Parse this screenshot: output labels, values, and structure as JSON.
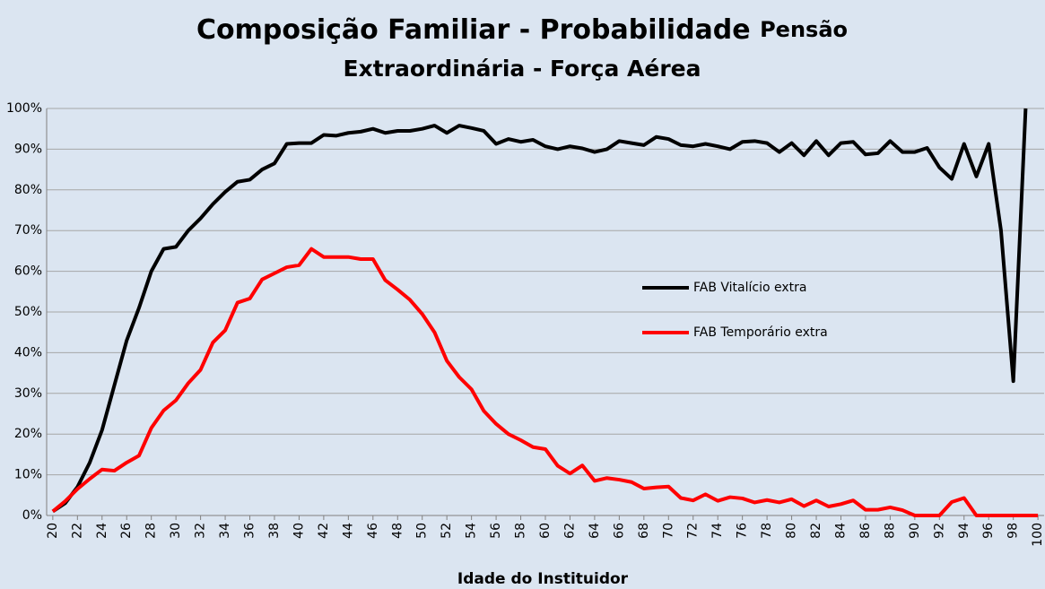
{
  "chart_data": {
    "type": "line",
    "title": [
      "Composição Familiar - Probabilidade",
      "Pensão",
      "Extraordinária - Força Aérea"
    ],
    "x_label": "Idade do Instituidor",
    "x": [
      20,
      21,
      22,
      23,
      24,
      25,
      26,
      27,
      28,
      29,
      30,
      31,
      32,
      33,
      34,
      35,
      36,
      37,
      38,
      39,
      40,
      41,
      42,
      43,
      44,
      45,
      46,
      47,
      48,
      49,
      50,
      51,
      52,
      53,
      54,
      55,
      56,
      57,
      58,
      59,
      60,
      61,
      62,
      63,
      64,
      65,
      66,
      67,
      68,
      69,
      70,
      71,
      72,
      73,
      74,
      75,
      76,
      77,
      78,
      79,
      80,
      81,
      82,
      83,
      84,
      85,
      86,
      87,
      88,
      89,
      90,
      91,
      92,
      93,
      94,
      95,
      96,
      97,
      98,
      99,
      100
    ],
    "series": [
      {
        "name": "FAB Vitalício extra",
        "color": "#000000",
        "values": [
          1,
          3,
          7,
          13,
          21,
          32,
          43,
          51,
          60,
          65.5,
          66,
          70,
          73,
          76.5,
          79.5,
          82,
          82.5,
          85,
          86.5,
          91.3,
          91.5,
          91.5,
          93.5,
          93.3,
          94,
          94.3,
          95,
          94,
          94.5,
          94.5,
          95,
          95.8,
          94,
          95.8,
          95.2,
          94.5,
          91.3,
          92.5,
          91.8,
          92.3,
          90.7,
          90,
          90.7,
          90.2,
          89.3,
          90,
          92,
          91.5,
          91,
          93,
          92.5,
          91,
          90.7,
          91.3,
          90.7,
          90,
          91.8,
          92,
          91.5,
          89.3,
          91.5,
          88.5,
          92,
          88.5,
          91.5,
          91.8,
          88.7,
          89,
          92,
          89.3,
          89.3,
          90.3,
          85.5,
          82.7,
          91.3,
          83.3,
          91.3,
          70,
          33,
          100,
          null
        ]
      },
      {
        "name": "FAB Temporário extra",
        "color": "#ff0000",
        "values": [
          1,
          3.5,
          6.5,
          9,
          11.3,
          11,
          13,
          14.7,
          21.5,
          25.8,
          28.3,
          32.5,
          35.8,
          42.5,
          45.5,
          52.3,
          53.3,
          58,
          59.5,
          61,
          61.5,
          65.5,
          63.5,
          63.5,
          63.5,
          63,
          63,
          57.8,
          55.5,
          53,
          49.5,
          45,
          38,
          34,
          31,
          25.7,
          22.5,
          20,
          18.5,
          16.8,
          16.3,
          12.2,
          10.3,
          12.3,
          8.5,
          9.2,
          8.8,
          8.2,
          6.6,
          6.9,
          7.1,
          4.3,
          3.7,
          5.2,
          3.6,
          4.5,
          4.2,
          3.2,
          3.8,
          3.2,
          4,
          2.3,
          3.7,
          2.2,
          2.8,
          3.7,
          1.4,
          1.4,
          2,
          1.3,
          0,
          0,
          0,
          3.3,
          4.3,
          0,
          0,
          0,
          0,
          0,
          0
        ]
      }
    ],
    "xlim": [
      19.5,
      100.5
    ],
    "xticks": [
      20,
      22,
      24,
      26,
      28,
      30,
      32,
      34,
      36,
      38,
      40,
      42,
      44,
      46,
      48,
      50,
      52,
      54,
      56,
      58,
      60,
      62,
      64,
      66,
      68,
      70,
      72,
      74,
      76,
      78,
      80,
      82,
      84,
      86,
      88,
      90,
      92,
      94,
      96,
      98,
      100
    ],
    "ylim": [
      0,
      100
    ],
    "yticks": [
      {
        "value": 0,
        "label": "0%"
      },
      {
        "value": 10,
        "label": "10%"
      },
      {
        "value": 20,
        "label": "20%"
      },
      {
        "value": 30,
        "label": "30%"
      },
      {
        "value": 40,
        "label": "40%"
      },
      {
        "value": 50,
        "label": "50%"
      },
      {
        "value": 60,
        "label": "60%"
      },
      {
        "value": 70,
        "label": "70%"
      },
      {
        "value": 80,
        "label": "80%"
      },
      {
        "value": 90,
        "label": "90%"
      },
      {
        "value": 100,
        "label": "100%"
      }
    ],
    "grid": true
  }
}
